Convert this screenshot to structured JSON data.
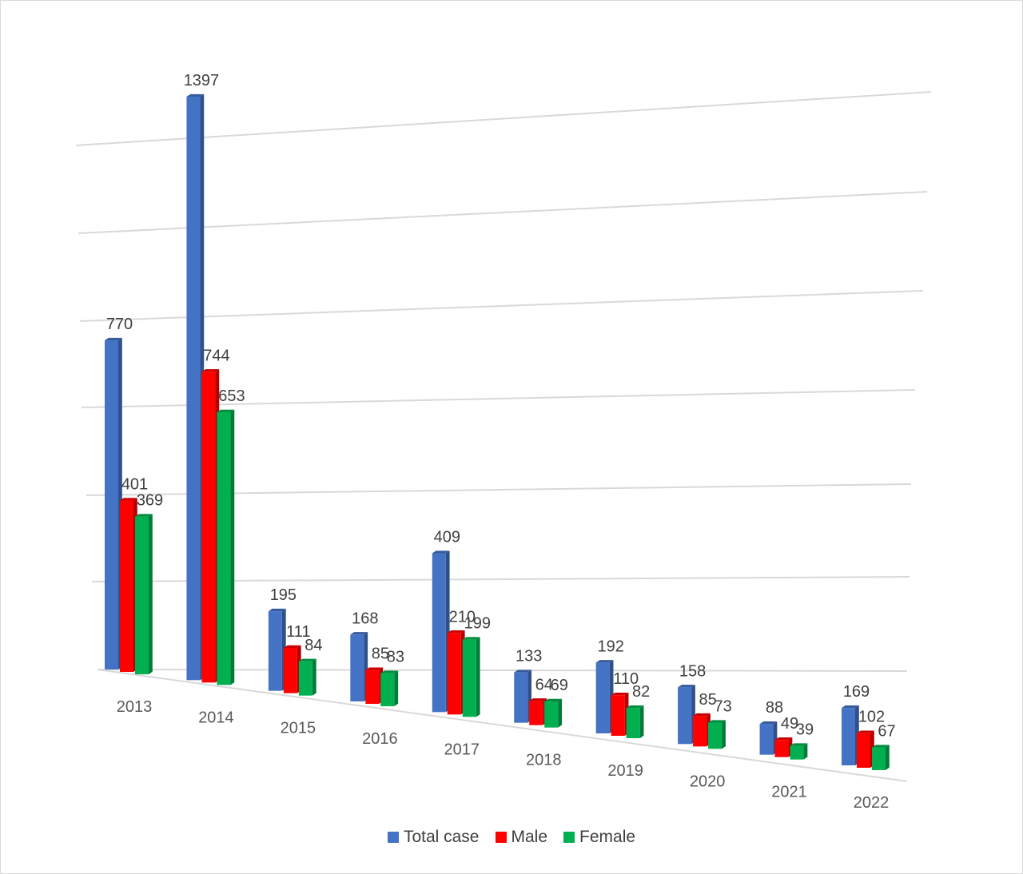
{
  "chart_data": {
    "type": "bar",
    "style": "3d-clustered-column",
    "title": "",
    "xlabel": "",
    "ylabel": "",
    "ylim": [
      0,
      1400
    ],
    "grid": true,
    "legend_position": "bottom",
    "categories": [
      "2013",
      "2014",
      "2015",
      "2016",
      "2017",
      "2018",
      "2019",
      "2020",
      "2021",
      "2022"
    ],
    "series": [
      {
        "name": "Total case",
        "color": "#4472c4",
        "values": [
          770,
          1397,
          195,
          168,
          409,
          133,
          192,
          158,
          88,
          169
        ]
      },
      {
        "name": "Male",
        "color": "#ff0000",
        "values": [
          401,
          744,
          111,
          85,
          210,
          64,
          110,
          85,
          49,
          102
        ]
      },
      {
        "name": "Female",
        "color": "#00b050",
        "values": [
          369,
          653,
          84,
          83,
          199,
          69,
          82,
          73,
          39,
          67
        ]
      }
    ]
  }
}
